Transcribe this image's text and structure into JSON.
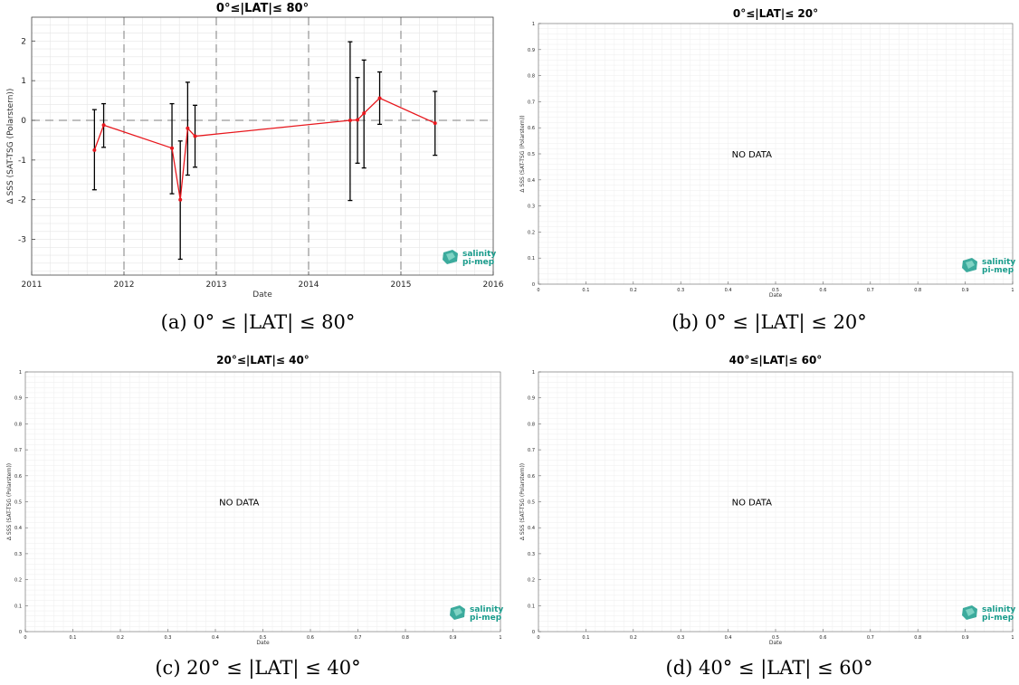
{
  "logo": {
    "line1": "salinity",
    "line2": "pi-mep",
    "color": "#1a9c8c"
  },
  "colors": {
    "series": "#e8171d",
    "errorbar": "#000000",
    "grid": "#e6e6e6",
    "dashed": "#7f7f7f"
  },
  "chart_data": [
    {
      "id": "a",
      "type": "line",
      "title": "0°≤|LAT|≤ 80°",
      "caption": "(a) 0° ≤ |LAT| ≤ 80°",
      "xlabel": "Date",
      "ylabel": "Δ SSS (SAT-TSG (Polarstern))",
      "xlim": [
        2011,
        2016
      ],
      "ylim": [
        -3.9,
        2.6
      ],
      "xticks": [
        "2011",
        "2012",
        "2013",
        "2014",
        "2015",
        "2016"
      ],
      "yticks": [
        "-3",
        "-2",
        "-1",
        "0",
        "1",
        "2"
      ],
      "grid": true,
      "reference_line": 0,
      "series": [
        {
          "points": [
            {
              "x": 2011.68,
              "y": -0.75,
              "lo": -1.75,
              "hi": 0.27
            },
            {
              "x": 2011.78,
              "y": -0.12,
              "lo": -0.68,
              "hi": 0.42
            },
            {
              "x": 2012.52,
              "y": -0.7,
              "lo": -1.85,
              "hi": 0.42
            },
            {
              "x": 2012.61,
              "y": -2.0,
              "lo": -3.5,
              "hi": -0.52
            },
            {
              "x": 2012.69,
              "y": -0.2,
              "lo": -1.38,
              "hi": 0.96
            },
            {
              "x": 2012.77,
              "y": -0.4,
              "lo": -1.18,
              "hi": 0.38
            },
            {
              "x": 2014.45,
              "y": 0.0,
              "lo": -2.02,
              "hi": 1.98
            },
            {
              "x": 2014.53,
              "y": 0.01,
              "lo": -1.08,
              "hi": 1.08
            },
            {
              "x": 2014.6,
              "y": 0.18,
              "lo": -1.2,
              "hi": 1.52
            },
            {
              "x": 2014.77,
              "y": 0.56,
              "lo": -0.1,
              "hi": 1.22
            },
            {
              "x": 2015.37,
              "y": -0.07,
              "lo": -0.88,
              "hi": 0.73
            }
          ]
        }
      ]
    },
    {
      "id": "b",
      "type": "line",
      "title": "0°≤|LAT|≤ 20°",
      "caption": "(b) 0° ≤ |LAT| ≤ 20°",
      "xlabel": "Date",
      "ylabel": "Δ SSS (SAT-TSG (Polarstern))",
      "xlim": [
        0,
        1
      ],
      "ylim": [
        0,
        1
      ],
      "xticks": [
        "0",
        "0.1",
        "0.2",
        "0.3",
        "0.4",
        "0.5",
        "0.6",
        "0.7",
        "0.8",
        "0.9",
        "1"
      ],
      "yticks": [
        "0",
        "0.1",
        "0.2",
        "0.3",
        "0.4",
        "0.5",
        "0.6",
        "0.7",
        "0.8",
        "0.9",
        "1"
      ],
      "grid": true,
      "annotation": "NO DATA",
      "series": []
    },
    {
      "id": "c",
      "type": "line",
      "title": "20°≤|LAT|≤ 40°",
      "caption": "(c) 20° ≤ |LAT| ≤ 40°",
      "xlabel": "Date",
      "ylabel": "Δ SSS (SAT-TSG (Polarstern))",
      "xlim": [
        0,
        1
      ],
      "ylim": [
        0,
        1
      ],
      "xticks": [
        "0",
        "0.1",
        "0.2",
        "0.3",
        "0.4",
        "0.5",
        "0.6",
        "0.7",
        "0.8",
        "0.9",
        "1"
      ],
      "yticks": [
        "0",
        "0.1",
        "0.2",
        "0.3",
        "0.4",
        "0.5",
        "0.6",
        "0.7",
        "0.8",
        "0.9",
        "1"
      ],
      "grid": true,
      "annotation": "NO DATA",
      "series": []
    },
    {
      "id": "d",
      "type": "line",
      "title": "40°≤|LAT|≤ 60°",
      "caption": "(d) 40° ≤ |LAT| ≤ 60°",
      "xlabel": "Date",
      "ylabel": "Δ SSS (SAT-TSG (Polarstern))",
      "xlim": [
        0,
        1
      ],
      "ylim": [
        0,
        1
      ],
      "xticks": [
        "0",
        "0.1",
        "0.2",
        "0.3",
        "0.4",
        "0.5",
        "0.6",
        "0.7",
        "0.8",
        "0.9",
        "1"
      ],
      "yticks": [
        "0",
        "0.1",
        "0.2",
        "0.3",
        "0.4",
        "0.5",
        "0.6",
        "0.7",
        "0.8",
        "0.9",
        "1"
      ],
      "grid": true,
      "annotation": "NO DATA",
      "series": []
    }
  ]
}
